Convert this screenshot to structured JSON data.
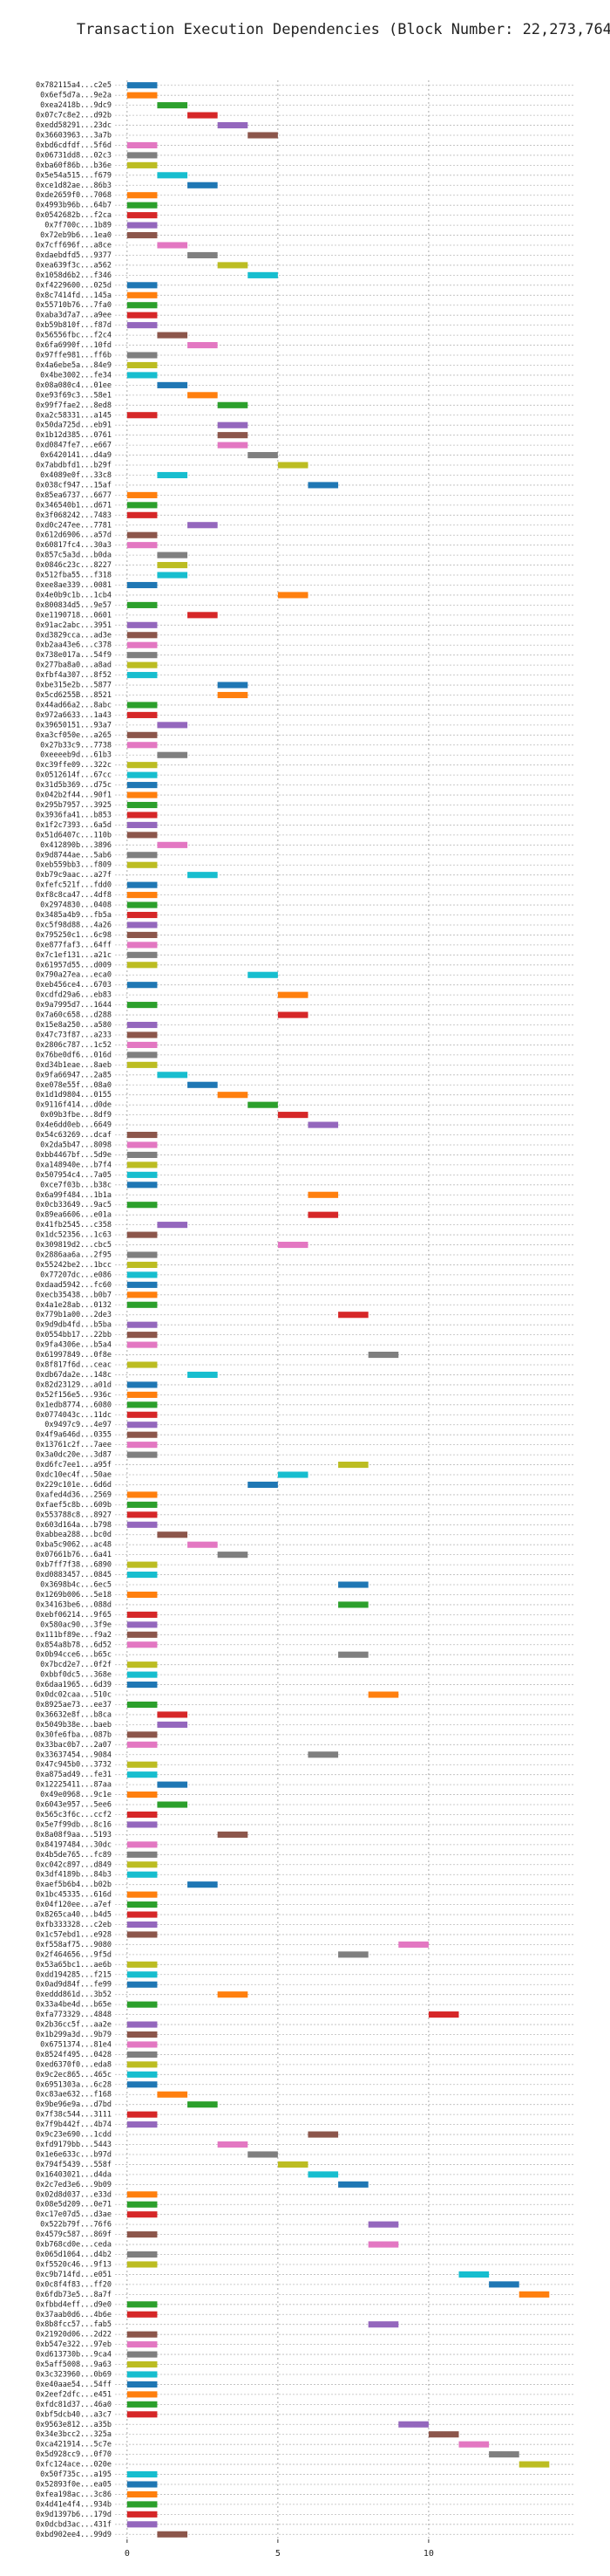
{
  "chart_data": {
    "type": "gantt",
    "title": "Transaction Execution Dependencies (Block Number: 22,273,764)",
    "categories": [
      "0x782115a4...c2e5",
      "0x6ef5d7a...9e2a",
      "0xea2418b...9dc9",
      "0x07c7c8e2...d92b",
      "0xedd58291...23dc",
      "0x36603963...3a7b",
      "0xbd6cdfdf...5f6d",
      "0x06731dd8...02c3",
      "0xba60f86b...b36e",
      "0x5e54a515...f679",
      "0xce1d82ae...86b3",
      "0xde2659f0...7068",
      "0x4993b96b...64b7",
      "0x0542682b...f2ca",
      "0x7f700c...1b89",
      "0x72eb9b6...1ea0",
      "0x7cff696f...a8ce",
      "0xdaebdfd5...9377",
      "0xea639f3c...a562",
      "0x1058d6b2...f346",
      "0xf4229600...025d",
      "0x8c7414fd...145a",
      "0x55710b76...7fa0",
      "0xaba3d7a7...a9ee",
      "0xb59b810f...f87d",
      "0x56556fbc...f2c4",
      "0x6fa6990f...10fd",
      "0x97ffe981...ff6b",
      "0x4a6ebe5a...84e9",
      "0x4be3002...fe34",
      "0x08a080c4...01ee",
      "0xe93f69c3...58e1",
      "0x99f7fae2...8ed8",
      "0xa2c58331...a145",
      "0x50da725d...eb91",
      "0x1b12d385...0761",
      "0xd0847fe7...e667",
      "0x6420141...d4a9",
      "0x7abdbfd1...b29f",
      "0x4089e0f...33c8",
      "0x038cf947...15af",
      "0x85ea6737...6677",
      "0x346540b1...d671",
      "0x3f068242...7483",
      "0xd0c247ee...7781",
      "0x612d6906...a57d",
      "0x60817fc4...30a3",
      "0x857c5a3d...b0da",
      "0x0846c23c...8227",
      "0x512fba55...f318",
      "0xee8ae339...0081",
      "0x4e0b9c1b...1cb4",
      "0x800834d5...9e57",
      "0xe1190718...0601",
      "0x91ac2abc...3951",
      "0xd3829cca...ad3e",
      "0xb2aa43e6...c378",
      "0x738e017a...54f9",
      "0x277ba8a0...a8ad",
      "0xfbf4a307...8f52",
      "0xbe315e2b...5877",
      "0x5cd6255B...8521",
      "0x44ad66a2...8abc",
      "0x972a6633...1a43",
      "0x39650151...93a7",
      "0xa3cf050e...a265",
      "0x27b33c9...7738",
      "0xeeeeb9d...61b3",
      "0xc39ffe09...322c",
      "0x0512614f...67cc",
      "0x31d5b369...d75c",
      "0x042b2f44...90f1",
      "0x295b7957...3925",
      "0x3936fa41...b853",
      "0x1f2c7393...6a5d",
      "0x51d6407c...110b",
      "0x412890b...3896",
      "0x9d8744ae...5ab6",
      "0xeb559bb3...f809",
      "0xb79c9aac...a27f",
      "0xfefc521f...fdd0",
      "0xf8c8ca47...4df8",
      "0x2974830...0408",
      "0x3485a4b9...fb5a",
      "0xc5f98d88...4a26",
      "0x795250c1...6c98",
      "0xe877faf3...64ff",
      "0x7c1ef131...a21c",
      "0x61957d55...d009",
      "0x790a27ea...eca0",
      "0xeb456ce4...6703",
      "0xcdfd29a6...eb83",
      "0x9a7995d7...1644",
      "0x7a60c658...d288",
      "0x15e8a250...a580",
      "0x47c73f87...a233",
      "0x2806c787...1c52",
      "0x76be0df6...016d",
      "0xd34b1eae...8aeb",
      "0x9fa66947...2a85",
      "0xe078e55f...08a0",
      "0x1d1d9804...0155",
      "0x9116f414...d0de",
      "0x09b3fbe...8df9",
      "0x4e6dd0eb...6649",
      "0x54c63269...dcaf",
      "0x2da5b47...8098",
      "0xbb4467bf...5d9e",
      "0xa148940e...b7f4",
      "0x507954c4...7a05",
      "0xce7f03b...b38c",
      "0x6a99f484...1b1a",
      "0x0cb33649...9ac5",
      "0x89ea6606...e01a",
      "0x41fb2545...c358",
      "0x1dc52356...1c63",
      "0x309819d2...cbc5",
      "0x2886aa6a...2f95",
      "0x55242be2...1bcc",
      "0x77207dc...e086",
      "0xdaad5942...fc60",
      "0xecb35438...b0b7",
      "0x4a1e28ab...0132",
      "0x779b1a00...2de3",
      "0x9d9db4fd...b5ba",
      "0x0554bb17...22bb",
      "0x9fa4306e...b5a4",
      "0x61997849...0f8e",
      "0x8f817f6d...ceac",
      "0xdb67da2e...148c",
      "0x82d23129...a01d",
      "0x52f156e5...936c",
      "0x1edb8774...6080",
      "0x0774043c...11dc",
      "0x9497c9...4e97",
      "0x4f9a646d...0355",
      "0x13761c2f...7aee",
      "0x3a0dc20e...3d87",
      "0xd6fc7ee1...a95f",
      "0xdc10ec4f...50ae",
      "0x229c101e...6d6d",
      "0xafed4d36...2569",
      "0xfaef5c8b...609b",
      "0x553788c8...8927",
      "0x603d164a...b798",
      "0xabbea288...bc0d",
      "0xba5c9062...ac48",
      "0x07661b76...6a41",
      "0xb7ff7f38...6890",
      "0xd0883457...0845",
      "0x3698b4c...6ec5",
      "0x1269b006...5e18",
      "0x34163be6...088d",
      "0xebf06214...9f65",
      "0x580ac90...3f9e",
      "0x111bf89e...f9a2",
      "0x854a8b78...6d52",
      "0x0b94cce6...b65c",
      "0x7bcd2e7...0f2f",
      "0xbbf0dc5...368e",
      "0x6daa1965...6d39",
      "0x0dc02caa...510c",
      "0x8925ae73...ee37",
      "0x36632e8f...b8ca",
      "0x5049b38e...baeb",
      "0x30fe6fba...087b",
      "0x33bac0b7...2a07",
      "0x33637454...9084",
      "0x47c945b0...3732",
      "0xa875ad49...fe31",
      "0x12225411...87aa",
      "0x49e0968...9c1e",
      "0x6043e957...5ee6",
      "0x565c3f6c...ccf2",
      "0x5e7f99db...8c16",
      "0x8a08f9aa...5193",
      "0x84197484...30dc",
      "0x4b5de765...fc89",
      "0xc042c897...d849",
      "0x3df4189b...84b3",
      "0xaef5b6b4...b02b",
      "0x1bc45335...616d",
      "0x04f120ee...a7ef",
      "0x8265ca40...b4d5",
      "0xfb333328...c2eb",
      "0x1c57ebd1...e928",
      "0xf558af75...9080",
      "0x2f464656...9f5d",
      "0x53a65bc1...ae6b",
      "0xdd194285...f215",
      "0x0ad9d84f...fe99",
      "0xeddd861d...3b52",
      "0x33a4be4d...b65e",
      "0xfa773329...4848",
      "0x2b36cc5f...aa2e",
      "0x1b299a3d...9b79",
      "0x6751374...81e4",
      "0x8524f495...0428",
      "0xed6370f0...eda8",
      "0x9c2ec865...465c",
      "0x6951303a...6c28",
      "0xc83ae632...f168",
      "0x9be96e9a...d7bd",
      "0x7f38c544...3111",
      "0x7f9b442f...4b74",
      "0x9c23e690...1cdd",
      "0xfd9179bb...5443",
      "0x1e6e633c...b97d",
      "0x794f5439...558f",
      "0x16403021...d4da",
      "0x2c7ed3e6...9b09",
      "0x02d8d037...e33d",
      "0x08e5d209...0e71",
      "0xc17e07d5...d3ae",
      "0x522b79f...76f6",
      "0x4579c587...869f",
      "0xb768cd0e...ceda",
      "0x065d1064...d4b2",
      "0xf5520c46...9f13",
      "0xc9b714fd...e051",
      "0x0c8f4f83...ff20",
      "0x6fdb73e5...8a7f",
      "0xfbbd4eff...d9e0",
      "0x37aab0d6...4b6e",
      "0x8b8fcc57...fab5",
      "0x21920d06...2d22",
      "0xb547e322...97eb",
      "0xd613730b...9ca4",
      "0x5aff5008...9a63",
      "0x3c323960...0b69",
      "0xe40aae54...54ff",
      "0x2eef2dfc...e451",
      "0xfdc81d37...46a0",
      "0xbf5dcb40...a3c7",
      "0x9563e812...a35b",
      "0x34e3bcc2...325a",
      "0xca421914...5c7e",
      "0x5d928cc9...0f70",
      "0xfc124ace...020e",
      "0x50f735c...a195",
      "0x52893f0e...ea05",
      "0xfea198ac...3c86",
      "0x4d41e4f4...934b",
      "0x9d1397b6...179d",
      "0x0dcbd3ac...431f",
      "0xbd902ee4...99d9"
    ],
    "values": [
      0,
      0,
      1,
      2,
      3,
      4,
      0,
      0,
      0,
      1,
      2,
      0,
      0,
      0,
      0,
      0,
      1,
      2,
      3,
      4,
      0,
      0,
      0,
      0,
      0,
      1,
      2,
      0,
      0,
      0,
      1,
      2,
      3,
      0,
      3,
      3,
      3,
      4,
      5,
      1,
      6,
      0,
      0,
      0,
      2,
      0,
      0,
      1,
      1,
      1,
      0,
      5,
      0,
      2,
      0,
      0,
      0,
      0,
      0,
      0,
      3,
      3,
      0,
      0,
      1,
      0,
      0,
      1,
      0,
      0,
      0,
      0,
      0,
      0,
      0,
      0,
      1,
      0,
      0,
      2,
      0,
      0,
      0,
      0,
      0,
      0,
      0,
      0,
      0,
      4,
      0,
      5,
      0,
      5,
      0,
      0,
      0,
      0,
      0,
      1,
      2,
      3,
      4,
      5,
      6,
      0,
      0,
      0,
      0,
      0,
      0,
      6,
      0,
      6,
      1,
      0,
      5,
      0,
      0,
      0,
      0,
      0,
      0,
      7,
      0,
      0,
      0,
      8,
      0,
      2,
      0,
      0,
      0,
      0,
      0,
      0,
      0,
      0,
      7,
      5,
      4,
      0,
      0,
      0,
      0,
      1,
      2,
      3,
      0,
      0,
      7,
      0,
      7,
      0,
      0,
      0,
      0,
      7,
      0,
      0,
      0,
      8,
      0,
      1,
      1,
      0,
      0,
      6,
      0,
      0,
      1,
      0,
      1,
      0,
      0,
      3,
      0,
      0,
      0,
      0,
      2,
      0,
      0,
      0,
      0,
      0,
      9,
      7,
      0,
      0,
      0,
      3,
      0,
      10,
      0,
      0,
      0,
      0,
      0,
      0,
      0,
      1,
      2,
      0,
      0,
      6,
      3,
      4,
      5,
      6,
      7,
      0,
      0,
      0,
      8,
      0,
      8,
      0,
      0,
      11,
      12,
      13,
      0,
      0,
      8,
      0,
      0,
      0,
      0,
      0,
      0,
      0,
      0,
      0,
      9,
      10,
      11,
      12,
      13,
      0,
      0,
      0,
      0,
      0,
      0,
      1
    ],
    "duration": 1,
    "colors": [
      "#1f77b4",
      "#ff7f0e",
      "#2ca02c",
      "#d62728",
      "#9467bd",
      "#8c564b",
      "#e377c2",
      "#7f7f7f",
      "#bcbd22",
      "#17becf"
    ],
    "xlim": [
      -0.4,
      14.8
    ],
    "xticks": [
      0,
      5,
      10
    ],
    "grid": true
  }
}
